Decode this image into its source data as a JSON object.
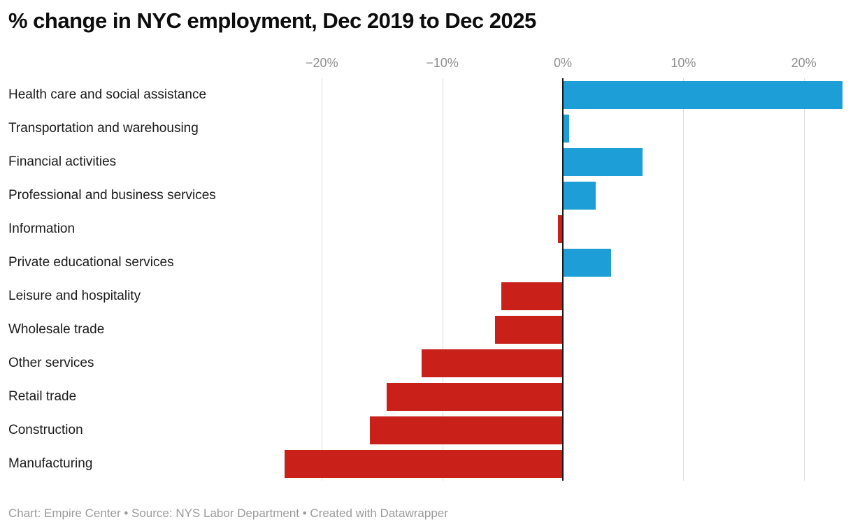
{
  "title": "% change in NYC employment, Dec 2019 to Dec 2025",
  "footer": "Chart: Empire Center • Source: NYS Labor Department • Created with Datawrapper",
  "colors": {
    "positive": "#1e9ed6",
    "negative": "#c9201a",
    "grid": "#dddddd",
    "zero_line": "#1a1a1a",
    "axis_text": "#8f8f8f",
    "label_text": "#1a1a1a",
    "footer_text": "#9b9b9b"
  },
  "chart_data": {
    "type": "bar",
    "orientation": "horizontal",
    "title": "% change in NYC employment, Dec 2019 to Dec 2025",
    "categories": [
      "Health care and social assistance",
      "Transportation and warehousing",
      "Financial activities",
      "Professional and business services",
      "Information",
      "Private educational services",
      "Leisure and hospitality",
      "Wholesale trade",
      "Other services",
      "Retail trade",
      "Construction",
      "Manufacturing"
    ],
    "values": [
      23.2,
      0.5,
      6.6,
      2.7,
      -0.4,
      4.0,
      -5.1,
      -5.6,
      -11.7,
      -14.6,
      -16.0,
      -23.1
    ],
    "xlim": [
      -23.5,
      23.5
    ],
    "ticks": [
      {
        "value": -20,
        "label": "−20%"
      },
      {
        "value": -10,
        "label": "−10%"
      },
      {
        "value": 0,
        "label": "0%"
      },
      {
        "value": 10,
        "label": "10%"
      },
      {
        "value": 20,
        "label": "20%"
      }
    ],
    "grid": true,
    "legend": false,
    "xlabel": "",
    "ylabel": ""
  }
}
